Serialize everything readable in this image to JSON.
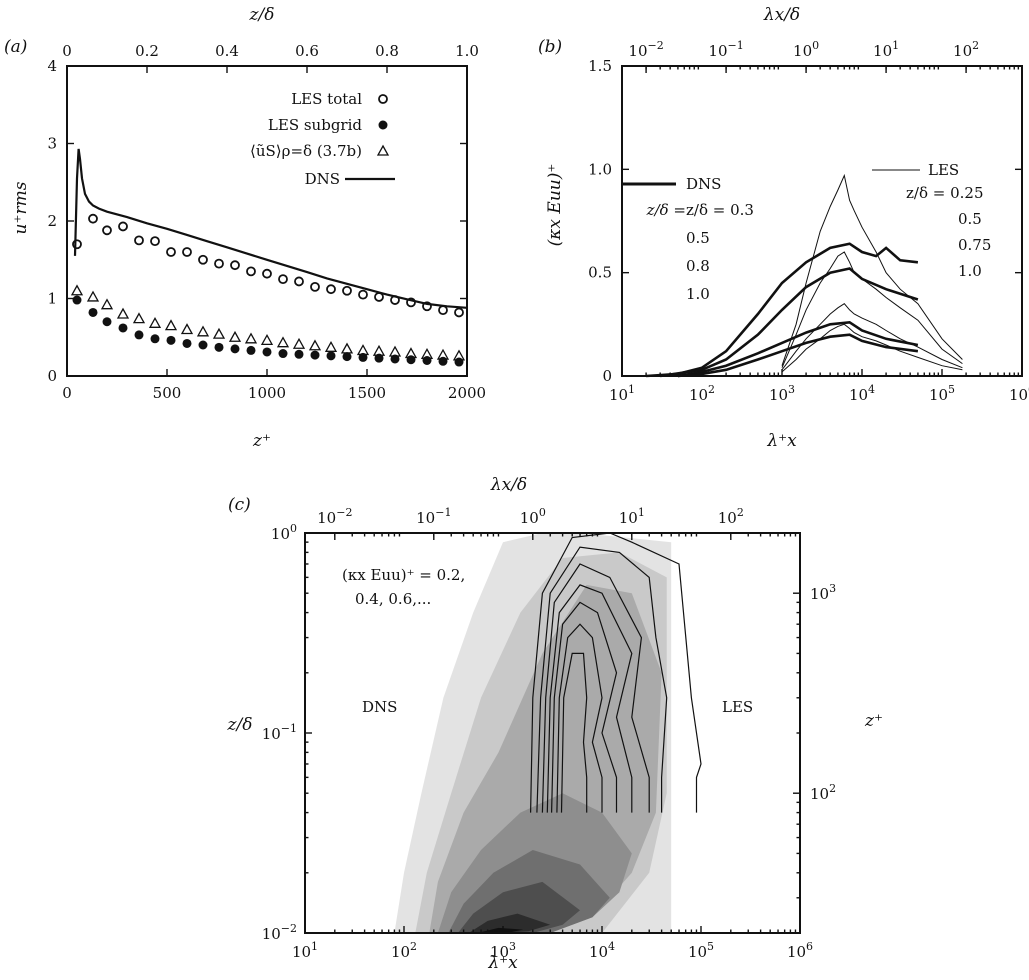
{
  "figure": {
    "background": "#ffffff",
    "ink": "#111111",
    "fill_shades": [
      "#e3e3e3",
      "#c9c9c9",
      "#aaaaaa",
      "#8e8e8e",
      "#6f6f6f",
      "#4e4e4e",
      "#2c2c2c",
      "#101010"
    ]
  },
  "chart_data": [
    {
      "panel": "(a)",
      "type": "scatter",
      "xlabel": "z⁺",
      "ylabel": "u⁺rms",
      "top_xlabel": "z/δ",
      "xlim": [
        0,
        2000
      ],
      "ylim": [
        0,
        4
      ],
      "top_xlim": [
        0,
        1.0
      ],
      "xticks": [
        "0",
        "500",
        "1000",
        "1500",
        "2000"
      ],
      "yticks": [
        "0",
        "1",
        "2",
        "3",
        "4"
      ],
      "top_xticks": [
        "0",
        "0.2",
        "0.4",
        "0.6",
        "0.8",
        "1.0"
      ],
      "legend_position": "top-right",
      "legend": [
        "LES total",
        "LES subgrid",
        "⟨ũS⟩ρ=δ (3.7b)",
        "DNS"
      ],
      "series": [
        {
          "name": "LES total",
          "marker": "open-circle",
          "x": [
            50,
            130,
            200,
            280,
            360,
            440,
            520,
            600,
            680,
            760,
            840,
            920,
            1000,
            1080,
            1160,
            1240,
            1320,
            1400,
            1480,
            1560,
            1640,
            1720,
            1800,
            1880,
            1960
          ],
          "y": [
            1.7,
            2.03,
            1.88,
            1.93,
            1.75,
            1.74,
            1.6,
            1.6,
            1.5,
            1.45,
            1.43,
            1.35,
            1.32,
            1.25,
            1.22,
            1.15,
            1.12,
            1.1,
            1.05,
            1.02,
            0.98,
            0.95,
            0.9,
            0.85,
            0.82
          ]
        },
        {
          "name": "LES subgrid",
          "marker": "filled-circle",
          "x": [
            50,
            130,
            200,
            280,
            360,
            440,
            520,
            600,
            680,
            760,
            840,
            920,
            1000,
            1080,
            1160,
            1240,
            1320,
            1400,
            1480,
            1560,
            1640,
            1720,
            1800,
            1880,
            1960
          ],
          "y": [
            0.98,
            0.82,
            0.7,
            0.62,
            0.53,
            0.48,
            0.46,
            0.42,
            0.4,
            0.37,
            0.35,
            0.33,
            0.31,
            0.29,
            0.28,
            0.27,
            0.26,
            0.25,
            0.24,
            0.23,
            0.22,
            0.21,
            0.2,
            0.19,
            0.18
          ]
        },
        {
          "name": "⟨ũS⟩ρ=δ (3.7b)",
          "marker": "open-triangle",
          "x": [
            50,
            130,
            200,
            280,
            360,
            440,
            520,
            600,
            680,
            760,
            840,
            920,
            1000,
            1080,
            1160,
            1240,
            1320,
            1400,
            1480,
            1560,
            1640,
            1720,
            1800,
            1880,
            1960
          ],
          "y": [
            1.1,
            1.02,
            0.92,
            0.8,
            0.74,
            0.68,
            0.65,
            0.6,
            0.57,
            0.54,
            0.5,
            0.48,
            0.46,
            0.43,
            0.41,
            0.39,
            0.37,
            0.35,
            0.33,
            0.32,
            0.31,
            0.29,
            0.28,
            0.27,
            0.26
          ]
        },
        {
          "name": "DNS",
          "marker": "line",
          "x": [
            40,
            50,
            58,
            65,
            75,
            90,
            110,
            130,
            160,
            200,
            300,
            400,
            500,
            600,
            700,
            800,
            900,
            1000,
            1100,
            1200,
            1300,
            1400,
            1500,
            1600,
            1700,
            1800,
            1900,
            2000
          ],
          "y": [
            1.55,
            2.55,
            2.93,
            2.8,
            2.55,
            2.35,
            2.25,
            2.2,
            2.16,
            2.12,
            2.05,
            1.97,
            1.9,
            1.82,
            1.74,
            1.66,
            1.58,
            1.5,
            1.42,
            1.34,
            1.26,
            1.19,
            1.12,
            1.05,
            0.99,
            0.93,
            0.9,
            0.88
          ]
        }
      ]
    },
    {
      "panel": "(b)",
      "type": "line",
      "xlabel": "λ⁺x",
      "ylabel": "(κx Euu)⁺",
      "top_xlabel": "λx/δ",
      "xscale": "log",
      "xlim": [
        10,
        1000000
      ],
      "ylim": [
        0,
        1.5
      ],
      "top_xlim": [
        0.005,
        500
      ],
      "xtick_exponents": [
        "1",
        "2",
        "3",
        "4",
        "5",
        "6"
      ],
      "top_xtick_exponents": [
        "−2",
        "−1",
        "0",
        "1",
        "2"
      ],
      "yticks": [
        "0",
        "0.5",
        "1.0",
        "1.5"
      ],
      "legend": {
        "dns_label": "DNS",
        "dns_z_values": [
          "z/δ = 0.3",
          "0.5",
          "0.8",
          "1.0"
        ],
        "les_label": "LES",
        "les_z_values": [
          "z/δ = 0.25",
          "0.5",
          "0.75",
          "1.0"
        ]
      },
      "series": [
        {
          "name": "DNS z/δ = 0.3",
          "style": "thick",
          "x": [
            20,
            50,
            100,
            200,
            500,
            1000,
            2000,
            4000,
            7000,
            10000,
            15000,
            20000,
            30000,
            50000
          ],
          "y": [
            0,
            0.01,
            0.04,
            0.12,
            0.3,
            0.45,
            0.55,
            0.62,
            0.64,
            0.6,
            0.58,
            0.62,
            0.56,
            0.55
          ]
        },
        {
          "name": "DNS z/δ = 0.5",
          "style": "thick",
          "x": [
            30,
            100,
            200,
            500,
            1000,
            2000,
            4000,
            7000,
            10000,
            20000,
            50000
          ],
          "y": [
            0,
            0.03,
            0.08,
            0.2,
            0.32,
            0.43,
            0.5,
            0.52,
            0.47,
            0.42,
            0.37
          ]
        },
        {
          "name": "DNS z/δ = 0.8",
          "style": "thick",
          "x": [
            50,
            100,
            200,
            500,
            1000,
            2000,
            4000,
            7000,
            10000,
            20000,
            50000
          ],
          "y": [
            0,
            0.02,
            0.05,
            0.11,
            0.16,
            0.21,
            0.25,
            0.26,
            0.22,
            0.18,
            0.15
          ]
        },
        {
          "name": "DNS z/δ = 1.0",
          "style": "thick",
          "x": [
            50,
            100,
            200,
            500,
            1000,
            2000,
            4000,
            7000,
            10000,
            20000,
            50000
          ],
          "y": [
            0,
            0.01,
            0.03,
            0.08,
            0.12,
            0.16,
            0.19,
            0.2,
            0.17,
            0.14,
            0.12
          ]
        },
        {
          "name": "LES z/δ = 0.25",
          "style": "thin",
          "x": [
            1000,
            1500,
            2000,
            3000,
            4000,
            5000,
            6000,
            7000,
            8000,
            10000,
            15000,
            20000,
            30000,
            50000,
            100000,
            180000
          ],
          "y": [
            0.05,
            0.25,
            0.45,
            0.7,
            0.82,
            0.9,
            0.97,
            0.85,
            0.8,
            0.72,
            0.6,
            0.5,
            0.42,
            0.35,
            0.18,
            0.08
          ]
        },
        {
          "name": "LES z/δ = 0.5",
          "style": "thin",
          "x": [
            1000,
            1500,
            2000,
            3000,
            4000,
            5000,
            6000,
            7000,
            8000,
            10000,
            15000,
            20000,
            30000,
            50000,
            100000,
            180000
          ],
          "y": [
            0.04,
            0.2,
            0.32,
            0.45,
            0.52,
            0.58,
            0.6,
            0.55,
            0.5,
            0.47,
            0.42,
            0.38,
            0.33,
            0.27,
            0.13,
            0.06
          ]
        },
        {
          "name": "LES z/δ = 0.75",
          "style": "thin",
          "x": [
            1000,
            1500,
            2000,
            3000,
            4000,
            5000,
            6000,
            7000,
            8000,
            10000,
            15000,
            20000,
            30000,
            50000,
            100000,
            180000
          ],
          "y": [
            0.03,
            0.12,
            0.18,
            0.25,
            0.3,
            0.33,
            0.35,
            0.32,
            0.3,
            0.28,
            0.25,
            0.22,
            0.18,
            0.14,
            0.08,
            0.04
          ]
        },
        {
          "name": "LES z/δ = 1.0",
          "style": "thin",
          "x": [
            1000,
            1500,
            2000,
            3000,
            4000,
            5000,
            6000,
            7000,
            8000,
            10000,
            15000,
            20000,
            30000,
            50000,
            100000,
            180000
          ],
          "y": [
            0.02,
            0.08,
            0.13,
            0.18,
            0.22,
            0.24,
            0.25,
            0.23,
            0.21,
            0.19,
            0.17,
            0.15,
            0.12,
            0.09,
            0.05,
            0.03
          ]
        }
      ]
    },
    {
      "panel": "(c)",
      "type": "heatmap",
      "xlabel": "λ⁺x",
      "ylabel": "z/δ",
      "top_xlabel": "λx/δ",
      "right_ylabel": "z⁺",
      "xscale": "log",
      "yscale": "log",
      "xlim": [
        10,
        1000000
      ],
      "ylim": [
        0.01,
        1
      ],
      "right_ylim": [
        20,
        2000
      ],
      "xtick_exponents": [
        "1",
        "2",
        "3",
        "4",
        "5",
        "6"
      ],
      "top_xtick_exponents": [
        "−2",
        "−1",
        "0",
        "1",
        "2"
      ],
      "ytick_exponents": [
        "−2",
        "−1",
        "0"
      ],
      "right_ytick_exponents": [
        "2",
        "3"
      ],
      "annotation_lines": [
        "(κx Euu)⁺ = 0.2,",
        "0.4, 0.6,..."
      ],
      "region_labels": [
        "DNS",
        "LES"
      ],
      "contour_levels": [
        0.2,
        0.4,
        0.6,
        0.8,
        1.0,
        1.2,
        1.4,
        1.6
      ],
      "dns_filled_contours": [
        {
          "level": 0.2,
          "x": [
            80,
            100,
            150,
            250,
            500,
            1000,
            2500,
            6000,
            50000,
            50000,
            6000,
            2000,
            700,
            300,
            150,
            100,
            80
          ],
          "y": [
            0.01,
            0.02,
            0.05,
            0.15,
            0.4,
            0.9,
            1.0,
            1.0,
            0.9,
            0.01,
            0.01,
            0.01,
            0.01,
            0.01,
            0.01,
            0.01,
            0.01
          ]
        },
        {
          "level": 0.4,
          "x": [
            130,
            170,
            300,
            600,
            1500,
            4000,
            15000,
            45000,
            45000,
            30000,
            10000,
            3000,
            1000,
            500,
            250,
            150,
            130
          ],
          "y": [
            0.01,
            0.02,
            0.05,
            0.15,
            0.4,
            0.75,
            0.8,
            0.6,
            0.05,
            0.02,
            0.01,
            0.01,
            0.01,
            0.01,
            0.01,
            0.01,
            0.01
          ]
        },
        {
          "level": 0.6,
          "x": [
            180,
            220,
            400,
            900,
            2500,
            7000,
            20000,
            40000,
            35000,
            20000,
            8000,
            3000,
            1000,
            400,
            220,
            180
          ],
          "y": [
            0.01,
            0.018,
            0.04,
            0.08,
            0.25,
            0.55,
            0.5,
            0.2,
            0.04,
            0.02,
            0.012,
            0.01,
            0.01,
            0.01,
            0.01,
            0.01
          ]
        },
        {
          "level": 0.8,
          "x": [
            220,
            300,
            600,
            1500,
            4000,
            10000,
            20000,
            15000,
            8000,
            3000,
            1000,
            450,
            300,
            220
          ],
          "y": [
            0.01,
            0.016,
            0.026,
            0.04,
            0.05,
            0.04,
            0.025,
            0.016,
            0.012,
            0.01,
            0.01,
            0.01,
            0.01,
            0.01
          ]
        },
        {
          "level": 1.0,
          "x": [
            280,
            400,
            800,
            2000,
            6000,
            12000,
            8000,
            3000,
            1200,
            500,
            280
          ],
          "y": [
            0.01,
            0.014,
            0.02,
            0.026,
            0.022,
            0.015,
            0.012,
            0.01,
            0.01,
            0.01,
            0.01
          ]
        },
        {
          "level": 1.2,
          "x": [
            350,
            500,
            1000,
            2500,
            6000,
            4000,
            2000,
            900,
            500,
            350
          ],
          "y": [
            0.01,
            0.0125,
            0.016,
            0.018,
            0.013,
            0.011,
            0.01,
            0.01,
            0.01,
            0.01
          ]
        },
        {
          "level": 1.4,
          "x": [
            450,
            700,
            1400,
            3000,
            1800,
            900,
            450
          ],
          "y": [
            0.01,
            0.0115,
            0.0125,
            0.011,
            0.0102,
            0.01,
            0.01
          ]
        },
        {
          "level": 1.6,
          "x": [
            550,
            900,
            1600,
            1100,
            550
          ],
          "y": [
            0.01,
            0.0106,
            0.0104,
            0.01,
            0.01
          ]
        }
      ],
      "les_line_contours": [
        {
          "level": 0.2,
          "x": [
            1900,
            2000,
            2500,
            5000,
            12000,
            20000,
            60000,
            80000,
            100000,
            90000,
            90000
          ],
          "y": [
            0.04,
            0.15,
            0.5,
            0.95,
            1.0,
            0.9,
            0.7,
            0.15,
            0.07,
            0.06,
            0.04
          ]
        },
        {
          "level": 0.4,
          "x": [
            2200,
            2400,
            3000,
            6000,
            15000,
            30000,
            35000,
            45000,
            40000,
            40000
          ],
          "y": [
            0.04,
            0.15,
            0.5,
            0.85,
            0.8,
            0.6,
            0.3,
            0.15,
            0.06,
            0.04
          ]
        },
        {
          "level": 0.6,
          "x": [
            2500,
            2700,
            3300,
            6000,
            12000,
            25000,
            20000,
            30000,
            30000
          ],
          "y": [
            0.04,
            0.15,
            0.45,
            0.7,
            0.6,
            0.3,
            0.12,
            0.06,
            0.04
          ]
        },
        {
          "level": 0.8,
          "x": [
            2800,
            3000,
            3700,
            6000,
            10000,
            20000,
            14000,
            20000,
            20000
          ],
          "y": [
            0.04,
            0.15,
            0.4,
            0.55,
            0.5,
            0.25,
            0.12,
            0.06,
            0.04
          ]
        },
        {
          "level": 1.0,
          "x": [
            3100,
            3300,
            4000,
            6000,
            9000,
            14000,
            10000,
            14000,
            14000
          ],
          "y": [
            0.04,
            0.15,
            0.35,
            0.45,
            0.4,
            0.2,
            0.1,
            0.06,
            0.04
          ]
        },
        {
          "level": 1.2,
          "x": [
            3500,
            3700,
            4500,
            6000,
            8000,
            10000,
            8000,
            10000,
            10000
          ],
          "y": [
            0.04,
            0.15,
            0.3,
            0.35,
            0.3,
            0.15,
            0.09,
            0.06,
            0.04
          ]
        },
        {
          "level": 1.4,
          "x": [
            3900,
            4100,
            5000,
            6500,
            7000,
            6500,
            7000,
            7000
          ],
          "y": [
            0.04,
            0.15,
            0.25,
            0.25,
            0.15,
            0.09,
            0.06,
            0.04
          ]
        }
      ]
    }
  ]
}
